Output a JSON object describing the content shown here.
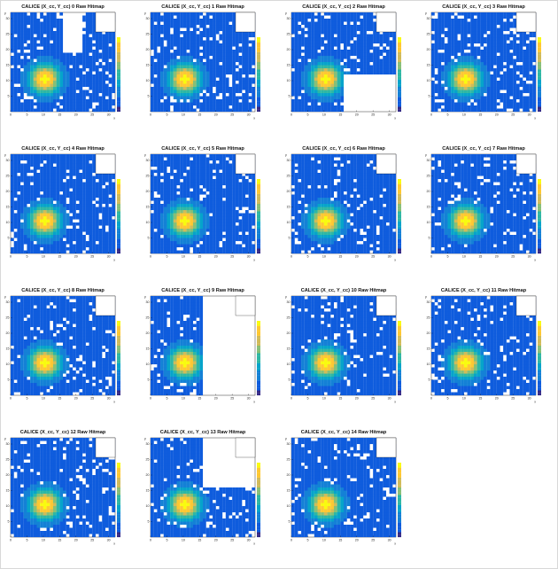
{
  "chart_data": {
    "type": "heatmap",
    "xlabel": "x",
    "ylabel": "y",
    "xlim": [
      0,
      32
    ],
    "ylim": [
      0,
      32
    ],
    "x_ticks": [
      0,
      5,
      10,
      15,
      20,
      25,
      30
    ],
    "y_ticks": [
      5,
      10,
      15,
      20,
      25,
      30
    ],
    "colormap": [
      "#352a87",
      "#0f5cdd",
      "#1481d6",
      "#06a4ca",
      "#2eb7a4",
      "#87bf77",
      "#d1bb59",
      "#fec832",
      "#f9fb0e"
    ],
    "panels": [
      {
        "title": "CALICE (X_cc, Y_cc) 0 Raw Hitmap",
        "center": [
          10,
          10
        ],
        "white_boxes": [
          [
            16,
            19,
            22,
            32
          ]
        ]
      },
      {
        "title": "CALICE (X_cc, Y_cc) 1 Raw Hitmap",
        "center": [
          10,
          10
        ],
        "white_boxes": []
      },
      {
        "title": "CALICE (X_cc, Y_cc) 2 Raw Hitmap",
        "center": [
          10,
          10
        ],
        "white_boxes": [
          [
            16,
            0,
            32,
            12
          ]
        ]
      },
      {
        "title": "CALICE (X_cc, Y_cc) 3 Raw Hitmap",
        "center": [
          10,
          10
        ],
        "white_boxes": []
      },
      {
        "title": "CALICE (X_cc, Y_cc) 4 Raw Hitmap",
        "center": [
          10,
          10
        ],
        "white_boxes": []
      },
      {
        "title": "CALICE (X_cc, Y_cc) 5 Raw Hitmap",
        "center": [
          10,
          10
        ],
        "white_boxes": []
      },
      {
        "title": "CALICE (X_cc, Y_cc) 6 Raw Hitmap",
        "center": [
          10,
          10
        ],
        "white_boxes": []
      },
      {
        "title": "CALICE (X_cc, Y_cc) 7 Raw Hitmap",
        "center": [
          10,
          10
        ],
        "white_boxes": []
      },
      {
        "title": "CALICE (X_cc, Y_cc) 8 Raw Hitmap",
        "center": [
          10,
          10
        ],
        "white_boxes": []
      },
      {
        "title": "CALICE (X_cc, Y_cc) 9 Raw Hitmap",
        "center": [
          10,
          10
        ],
        "white_boxes": [
          [
            16,
            0,
            32,
            32
          ]
        ]
      },
      {
        "title": "CALICE (X_cc, Y_cc) 10 Raw Hitmap",
        "center": [
          10,
          10
        ],
        "white_boxes": []
      },
      {
        "title": "CALICE (X_cc, Y_cc) 11 Raw Hitmap",
        "center": [
          10,
          10
        ],
        "white_boxes": []
      },
      {
        "title": "CALICE (X_cc, Y_cc) 12 Raw Hitmap",
        "center": [
          10,
          10
        ],
        "white_boxes": []
      },
      {
        "title": "CALICE (X_cc, Y_cc) 13 Raw Hitmap",
        "center": [
          10,
          10
        ],
        "white_boxes": [
          [
            16,
            16,
            32,
            32
          ]
        ]
      },
      {
        "title": "CALICE (X_cc, Y_cc) 14 Raw Hitmap",
        "center": [
          10,
          10
        ],
        "white_boxes": []
      }
    ]
  }
}
